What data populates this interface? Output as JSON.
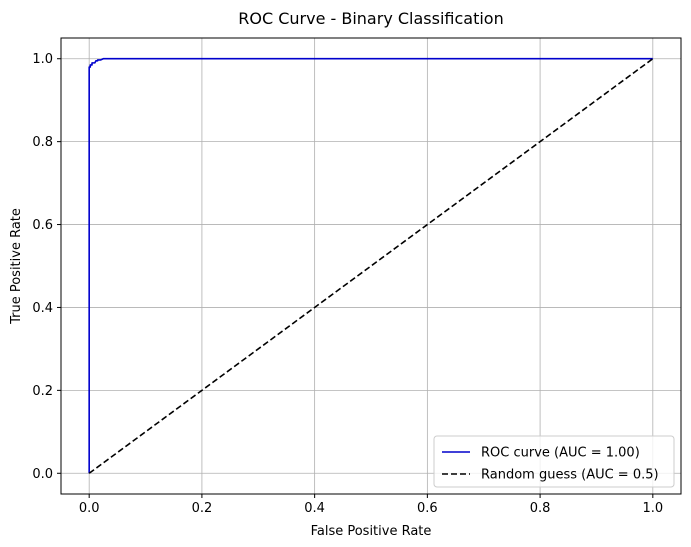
{
  "chart_data": {
    "type": "line",
    "title": "ROC Curve - Binary Classification",
    "xlabel": "False Positive Rate",
    "ylabel": "True Positive Rate",
    "xlim": [
      -0.05,
      1.05
    ],
    "ylim": [
      -0.05,
      1.05
    ],
    "xticks": [
      0.0,
      0.2,
      0.4,
      0.6,
      0.8,
      1.0
    ],
    "xtick_labels": [
      "0.0",
      "0.2",
      "0.4",
      "0.6",
      "0.8",
      "1.0"
    ],
    "yticks": [
      0.0,
      0.2,
      0.4,
      0.6,
      0.8,
      1.0
    ],
    "ytick_labels": [
      "0.0",
      "0.2",
      "0.4",
      "0.6",
      "0.8",
      "1.0"
    ],
    "grid": true,
    "legend_position": "bottom-right",
    "series": [
      {
        "name": "ROC curve (AUC = 1.00)",
        "color": "#0000cc",
        "style": "solid",
        "x": [
          0.0,
          0.0,
          0.0,
          0.002,
          0.002,
          0.005,
          0.005,
          0.01,
          0.012,
          0.015,
          0.015,
          0.02,
          0.025,
          1.0
        ],
        "y": [
          0.0,
          0.5,
          0.98,
          0.98,
          0.985,
          0.985,
          0.99,
          0.99,
          0.995,
          0.995,
          0.997,
          0.997,
          1.0,
          1.0
        ]
      },
      {
        "name": "Random guess (AUC = 0.5)",
        "color": "#000000",
        "style": "dashed",
        "x": [
          0.0,
          1.0
        ],
        "y": [
          0.0,
          1.0
        ]
      }
    ]
  }
}
